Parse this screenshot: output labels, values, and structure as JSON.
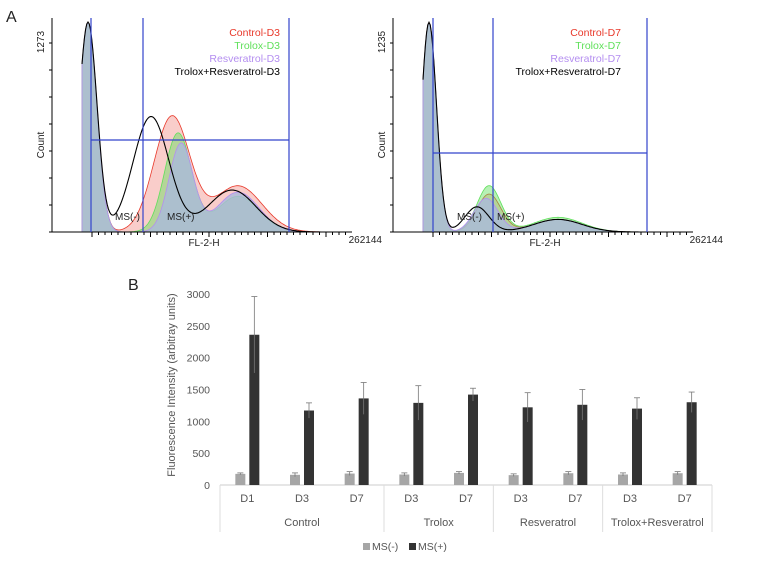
{
  "panel_labels": {
    "a": "A",
    "b": "B"
  },
  "chart_data": [
    {
      "type": "area",
      "panel": "A",
      "xlabel": "FL-2-H",
      "ylabel": "Count",
      "ymax_label": "1273",
      "xmax_label": "262144",
      "x_scale": "log",
      "legend": [
        "Control-D3",
        "Trolox-D3",
        "Resveratrol-D3",
        "Trolox+Resveratrol-D3"
      ],
      "legend_colors": [
        "#e8382a",
        "#5fe05a",
        "#b48ef0",
        "#000000"
      ],
      "gate_labels": [
        "MS(-)",
        "MS(+)"
      ],
      "legend_position": "top-right"
    },
    {
      "type": "area",
      "panel": "A",
      "xlabel": "FL-2-H",
      "ylabel": "Count",
      "ymax_label": "1235",
      "xmax_label": "262144",
      "x_scale": "log",
      "legend": [
        "Control-D7",
        "Trolox-D7",
        "Resveratrol-D7",
        "Trolox+Resveratrol-D7"
      ],
      "legend_colors": [
        "#e8382a",
        "#5fe05a",
        "#b48ef0",
        "#000000"
      ],
      "gate_labels": [
        "MS(-)",
        "MS(+)"
      ],
      "legend_position": "top-right"
    },
    {
      "type": "bar",
      "panel": "B",
      "ylabel": "Fluorescence Intensity (arbitray units)",
      "ylim": [
        0,
        3000
      ],
      "yticks": [
        "0",
        "500",
        "1000",
        "1500",
        "2000",
        "2500",
        "3000"
      ],
      "groups": [
        {
          "name": "Control",
          "categories": [
            "D1",
            "D3",
            "D7"
          ]
        },
        {
          "name": "Trolox",
          "categories": [
            "D3",
            "D7"
          ]
        },
        {
          "name": "Resveratrol",
          "categories": [
            "D3",
            "D7"
          ]
        },
        {
          "name": "Trolox+Resveratrol",
          "categories": [
            "D3",
            "D7"
          ]
        }
      ],
      "series": [
        {
          "name": "MS(-)",
          "color": "#a6a6a6",
          "values": [
            175,
            160,
            180,
            165,
            190,
            155,
            185,
            165,
            185
          ],
          "errors": [
            15,
            30,
            30,
            25,
            20,
            20,
            25,
            25,
            25
          ]
        },
        {
          "name": "MS(+)",
          "color": "#333333",
          "values": [
            2360,
            1170,
            1360,
            1290,
            1420,
            1220,
            1260,
            1200,
            1300
          ],
          "errors": [
            600,
            120,
            250,
            270,
            100,
            230,
            240,
            170,
            160
          ]
        }
      ],
      "legend_position": "bottom",
      "grid": false
    }
  ]
}
